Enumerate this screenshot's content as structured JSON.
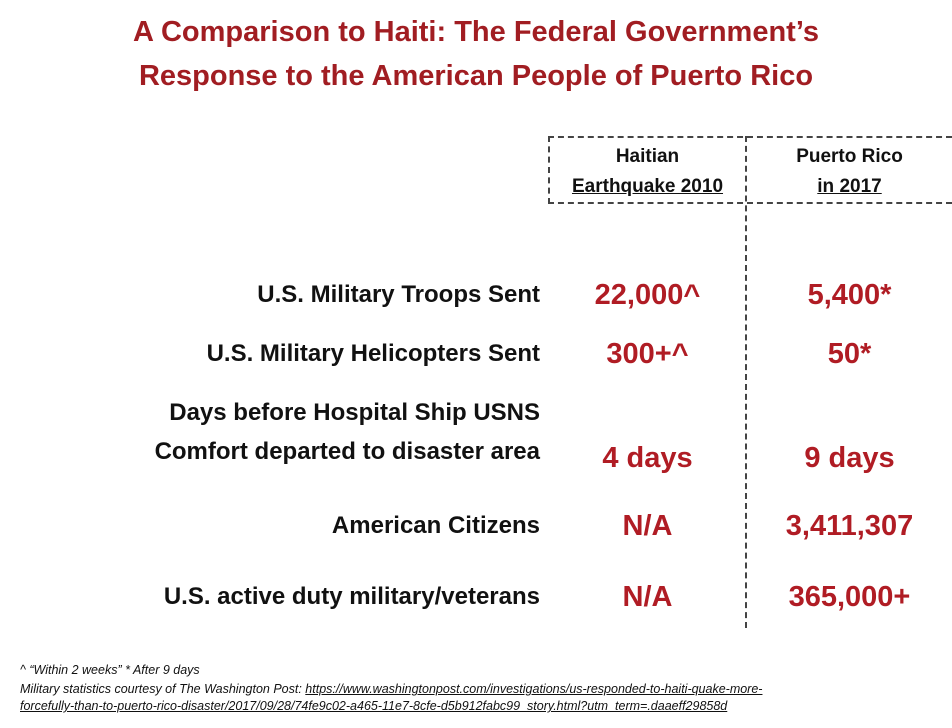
{
  "title": {
    "line1": "A Comparison to Haiti: The Federal Government’s",
    "line2": "Response to the American People of Puerto Rico"
  },
  "columns": [
    {
      "line1": "Haitian",
      "line2": "Earthquake 2010"
    },
    {
      "line1": "Puerto Rico",
      "line2": "in 2017"
    }
  ],
  "rows": [
    {
      "label": "U.S. Military Troops Sent",
      "haiti": "22,000^",
      "pr": "5,400*"
    },
    {
      "label": "U.S. Military Helicopters Sent",
      "haiti": "300+^",
      "pr": "50*"
    },
    {
      "label_line1": "Days before Hospital Ship USNS",
      "label_line2": "Comfort departed to disaster area",
      "haiti": "4 days",
      "pr": "9 days"
    },
    {
      "label": "American Citizens",
      "haiti": "N/A",
      "pr": "3,411,307"
    },
    {
      "label": "U.S. active duty military/veterans",
      "haiti": "N/A",
      "pr": "365,000+"
    }
  ],
  "footnote": {
    "legend": "^ “Within 2 weeks”  * After 9 days",
    "source_prefix": "Military statistics courtesy of The Washington Post: ",
    "url_line1": "https://www.washingtonpost.com/investigations/us-responded-to-haiti-quake-more-",
    "url_line2": "forcefully-than-to-puerto-rico-disaster/2017/09/28/74fe9c02-a465-11e7-8cfe-d5b912fabc99_story.html?utm_term=.daaeff29858d"
  },
  "colors": {
    "title": "#a11d22",
    "value": "#b01c24",
    "text": "#111111"
  }
}
